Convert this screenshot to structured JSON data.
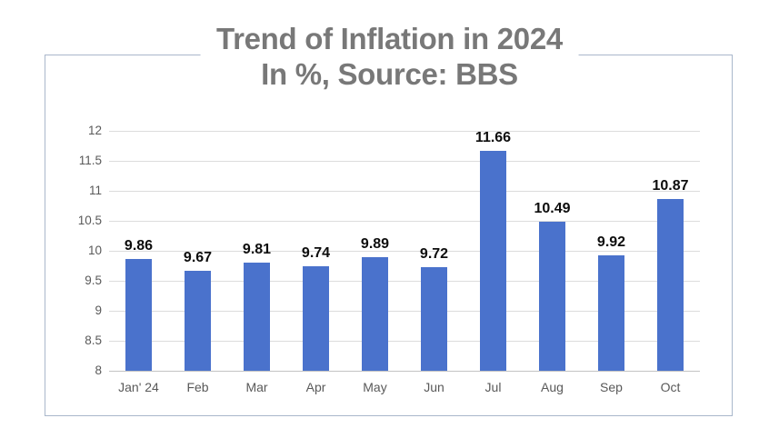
{
  "title": {
    "line1": "Trend of Inflation in 2024",
    "line2": "In %, Source: BBS"
  },
  "chart_data": {
    "type": "bar",
    "title": "Trend of Inflation in 2024",
    "subtitle": "In %, Source: BBS",
    "categories": [
      "Jan' 24",
      "Feb",
      "Mar",
      "Apr",
      "May",
      "Jun",
      "Jul",
      "Aug",
      "Sep",
      "Oct"
    ],
    "values": [
      9.86,
      9.67,
      9.81,
      9.74,
      9.89,
      9.72,
      11.66,
      10.49,
      9.92,
      10.87
    ],
    "xlabel": "",
    "ylabel": "",
    "ylim": [
      8,
      12
    ],
    "ytick_step": 0.5,
    "grid": true,
    "legend": "none",
    "data_labels": true
  },
  "colors": {
    "bar": "#4a72cc",
    "frame_border": "#a9b7cb",
    "title_text": "#787878",
    "grid_line": "#dcdcdc",
    "axis_line": "#c3c3c3",
    "tick_text": "#595959",
    "value_label_text": "#0d0d0d",
    "background": "#ffffff"
  }
}
